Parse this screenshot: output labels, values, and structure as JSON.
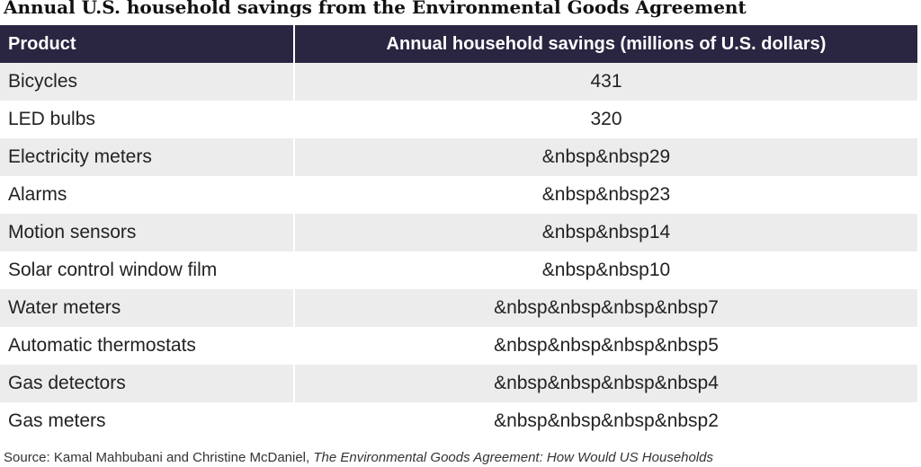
{
  "chart_data": {
    "type": "table",
    "title": "Annual U.S. household savings from the Environmental Goods Agreement",
    "columns": [
      "Product",
      "Annual household savings (millions of U.S. dollars)"
    ],
    "rows": [
      {
        "product": "Bicycles",
        "savings": "431"
      },
      {
        "product": "LED bulbs",
        "savings": "320"
      },
      {
        "product": "Electricity meters",
        "savings": "&nbsp&nbsp29"
      },
      {
        "product": "Alarms",
        "savings": "&nbsp&nbsp23"
      },
      {
        "product": "Motion sensors",
        "savings": "&nbsp&nbsp14"
      },
      {
        "product": "Solar control window film",
        "savings": "&nbsp&nbsp10"
      },
      {
        "product": "Water meters",
        "savings": "&nbsp&nbsp&nbsp&nbsp7"
      },
      {
        "product": "Automatic thermostats",
        "savings": "&nbsp&nbsp&nbsp&nbsp5"
      },
      {
        "product": "Gas detectors",
        "savings": "&nbsp&nbsp&nbsp&nbsp4"
      },
      {
        "product": "Gas meters",
        "savings": "&nbsp&nbsp&nbsp&nbsp2"
      }
    ]
  },
  "source": {
    "prefix": "Source: Kamal Mahbubani and Christine McDaniel,",
    "italic": "The Environmental Goods Agreement: How Would US Households"
  }
}
